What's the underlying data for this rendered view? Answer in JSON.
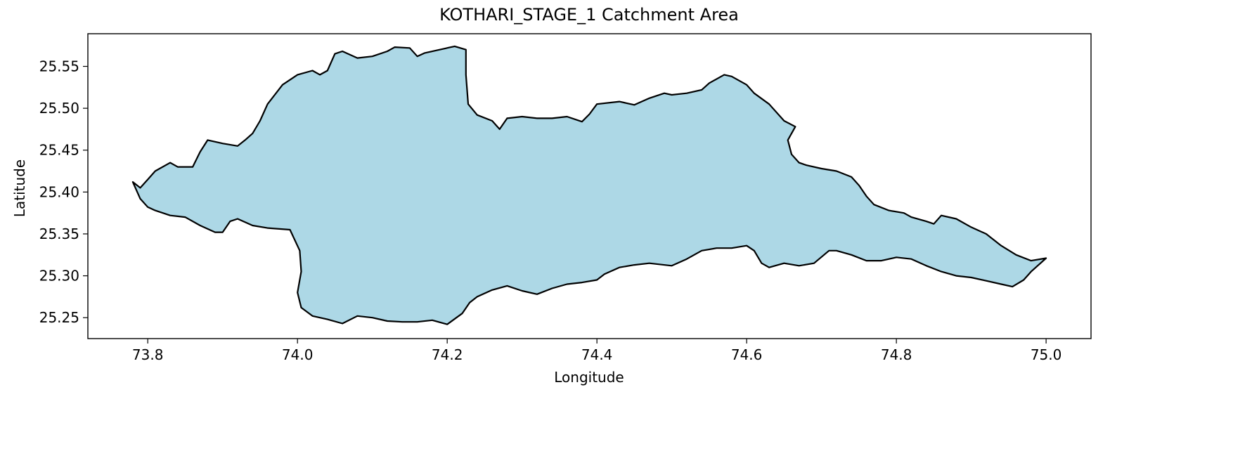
{
  "chart_data": {
    "type": "map",
    "title": "KOTHARI_STAGE_1 Catchment Area",
    "xlabel": "Longitude",
    "ylabel": "Latitude",
    "xlim": [
      73.72,
      75.06
    ],
    "ylim": [
      25.225,
      25.589
    ],
    "xticks": [
      73.8,
      74.0,
      74.2,
      74.4,
      74.6,
      74.8,
      75.0
    ],
    "xtick_labels": [
      "73.8",
      "74.0",
      "74.2",
      "74.4",
      "74.6",
      "74.8",
      "75.0"
    ],
    "yticks": [
      25.25,
      25.3,
      25.35,
      25.4,
      25.45,
      25.5,
      25.55
    ],
    "ytick_labels": [
      "25.25",
      "25.30",
      "25.35",
      "25.40",
      "25.45",
      "25.50",
      "25.55"
    ],
    "grid": false,
    "legend": false,
    "fill_color": "#add8e6",
    "edge_color": "#000000",
    "boundary": [
      [
        73.78,
        25.412
      ],
      [
        73.79,
        25.405
      ],
      [
        73.8,
        25.415
      ],
      [
        73.81,
        25.425
      ],
      [
        73.83,
        25.435
      ],
      [
        73.84,
        25.43
      ],
      [
        73.86,
        25.43
      ],
      [
        73.87,
        25.448
      ],
      [
        73.88,
        25.462
      ],
      [
        73.9,
        25.458
      ],
      [
        73.92,
        25.455
      ],
      [
        73.93,
        25.462
      ],
      [
        73.94,
        25.47
      ],
      [
        73.95,
        25.485
      ],
      [
        73.96,
        25.505
      ],
      [
        73.98,
        25.528
      ],
      [
        74.0,
        25.54
      ],
      [
        74.02,
        25.545
      ],
      [
        74.03,
        25.54
      ],
      [
        74.04,
        25.545
      ],
      [
        74.05,
        25.565
      ],
      [
        74.06,
        25.568
      ],
      [
        74.08,
        25.56
      ],
      [
        74.1,
        25.562
      ],
      [
        74.12,
        25.568
      ],
      [
        74.13,
        25.573
      ],
      [
        74.15,
        25.572
      ],
      [
        74.16,
        25.562
      ],
      [
        74.17,
        25.566
      ],
      [
        74.19,
        25.57
      ],
      [
        74.21,
        25.574
      ],
      [
        74.225,
        25.57
      ],
      [
        74.225,
        25.54
      ],
      [
        74.228,
        25.505
      ],
      [
        74.24,
        25.492
      ],
      [
        74.26,
        25.485
      ],
      [
        74.27,
        25.475
      ],
      [
        74.28,
        25.488
      ],
      [
        74.3,
        25.49
      ],
      [
        74.32,
        25.488
      ],
      [
        74.34,
        25.488
      ],
      [
        74.36,
        25.49
      ],
      [
        74.38,
        25.484
      ],
      [
        74.39,
        25.493
      ],
      [
        74.4,
        25.505
      ],
      [
        74.43,
        25.508
      ],
      [
        74.45,
        25.504
      ],
      [
        74.47,
        25.512
      ],
      [
        74.49,
        25.518
      ],
      [
        74.5,
        25.516
      ],
      [
        74.52,
        25.518
      ],
      [
        74.54,
        25.522
      ],
      [
        74.55,
        25.53
      ],
      [
        74.57,
        25.54
      ],
      [
        74.58,
        25.538
      ],
      [
        74.6,
        25.528
      ],
      [
        74.61,
        25.518
      ],
      [
        74.63,
        25.505
      ],
      [
        74.65,
        25.485
      ],
      [
        74.665,
        25.478
      ],
      [
        74.655,
        25.462
      ],
      [
        74.66,
        25.445
      ],
      [
        74.67,
        25.435
      ],
      [
        74.68,
        25.432
      ],
      [
        74.7,
        25.428
      ],
      [
        74.72,
        25.425
      ],
      [
        74.74,
        25.418
      ],
      [
        74.75,
        25.408
      ],
      [
        74.76,
        25.395
      ],
      [
        74.77,
        25.385
      ],
      [
        74.79,
        25.378
      ],
      [
        74.81,
        25.375
      ],
      [
        74.82,
        25.37
      ],
      [
        74.84,
        25.365
      ],
      [
        74.85,
        25.362
      ],
      [
        74.86,
        25.372
      ],
      [
        74.88,
        25.368
      ],
      [
        74.9,
        25.358
      ],
      [
        74.92,
        25.35
      ],
      [
        74.94,
        25.336
      ],
      [
        74.96,
        25.325
      ],
      [
        74.98,
        25.318
      ],
      [
        75.0,
        25.321
      ],
      [
        74.98,
        25.305
      ],
      [
        74.97,
        25.295
      ],
      [
        74.955,
        25.287
      ],
      [
        74.94,
        25.29
      ],
      [
        74.92,
        25.294
      ],
      [
        74.9,
        25.298
      ],
      [
        74.88,
        25.3
      ],
      [
        74.86,
        25.305
      ],
      [
        74.84,
        25.312
      ],
      [
        74.82,
        25.32
      ],
      [
        74.8,
        25.322
      ],
      [
        74.78,
        25.318
      ],
      [
        74.76,
        25.318
      ],
      [
        74.74,
        25.325
      ],
      [
        74.72,
        25.33
      ],
      [
        74.71,
        25.33
      ],
      [
        74.69,
        25.315
      ],
      [
        74.67,
        25.312
      ],
      [
        74.65,
        25.315
      ],
      [
        74.63,
        25.31
      ],
      [
        74.62,
        25.315
      ],
      [
        74.61,
        25.33
      ],
      [
        74.6,
        25.336
      ],
      [
        74.58,
        25.333
      ],
      [
        74.56,
        25.333
      ],
      [
        74.54,
        25.33
      ],
      [
        74.52,
        25.32
      ],
      [
        74.5,
        25.312
      ],
      [
        74.47,
        25.315
      ],
      [
        74.45,
        25.313
      ],
      [
        74.43,
        25.31
      ],
      [
        74.41,
        25.302
      ],
      [
        74.4,
        25.295
      ],
      [
        74.38,
        25.292
      ],
      [
        74.36,
        25.29
      ],
      [
        74.34,
        25.285
      ],
      [
        74.32,
        25.278
      ],
      [
        74.3,
        25.282
      ],
      [
        74.28,
        25.288
      ],
      [
        74.26,
        25.283
      ],
      [
        74.24,
        25.275
      ],
      [
        74.23,
        25.268
      ],
      [
        74.22,
        25.255
      ],
      [
        74.2,
        25.242
      ],
      [
        74.18,
        25.247
      ],
      [
        74.16,
        25.245
      ],
      [
        74.14,
        25.245
      ],
      [
        74.12,
        25.246
      ],
      [
        74.1,
        25.25
      ],
      [
        74.08,
        25.252
      ],
      [
        74.06,
        25.243
      ],
      [
        74.04,
        25.248
      ],
      [
        74.02,
        25.252
      ],
      [
        74.005,
        25.262
      ],
      [
        74.0,
        25.28
      ],
      [
        74.005,
        25.305
      ],
      [
        74.003,
        25.33
      ],
      [
        73.99,
        25.355
      ],
      [
        73.96,
        25.357
      ],
      [
        73.94,
        25.36
      ],
      [
        73.92,
        25.368
      ],
      [
        73.91,
        25.365
      ],
      [
        73.9,
        25.352
      ],
      [
        73.89,
        25.352
      ],
      [
        73.87,
        25.36
      ],
      [
        73.85,
        25.37
      ],
      [
        73.83,
        25.372
      ],
      [
        73.81,
        25.378
      ],
      [
        73.8,
        25.382
      ],
      [
        73.79,
        25.392
      ],
      [
        73.78,
        25.412
      ]
    ]
  }
}
